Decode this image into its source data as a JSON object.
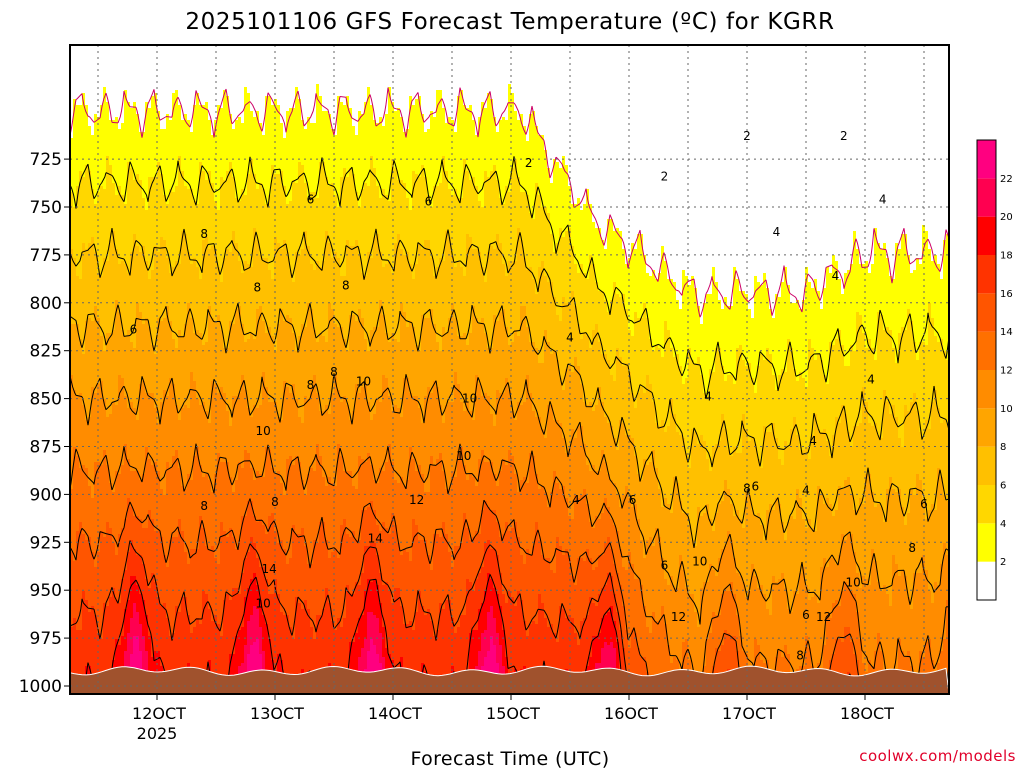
{
  "title": "2025101106 GFS Forecast Temperature (ºC) for KGRR",
  "x_axis_title": "Forecast Time (UTC)",
  "credit": "coolwx.com/models",
  "colors": {
    "background": "#ffffff",
    "ground": "#a0522d",
    "contour_line": "#000000",
    "zero_line": "#cc0066",
    "frame": "#000000",
    "grid": "#666666"
  },
  "chart_data": {
    "type": "heatmap",
    "title": "2025101106 GFS Forecast Temperature (ºC) for KGRR",
    "xlabel": "Forecast Time (UTC)",
    "ylabel": "",
    "x_ticks": [
      "12OCT",
      "13OCT",
      "14OCT",
      "15OCT",
      "16OCT",
      "17OCT",
      "18OCT"
    ],
    "x_tick_sublabels": [
      "2025",
      "",
      "",
      "",
      "",
      "",
      ""
    ],
    "y_ticks": [
      725,
      750,
      775,
      800,
      825,
      850,
      875,
      900,
      925,
      950,
      975,
      1000
    ],
    "y_range_hpa": [
      1000,
      700
    ],
    "y_scale": "linear-inverted",
    "grid": true,
    "colorbar": {
      "labels": [
        "2",
        "4",
        "6",
        "8",
        "10",
        "12",
        "14",
        "16",
        "18",
        "20",
        "22"
      ],
      "bins": [
        {
          "lower": 0,
          "upper": 2,
          "color": "#ffffff"
        },
        {
          "lower": 2,
          "upper": 4,
          "color": "#ffff00"
        },
        {
          "lower": 4,
          "upper": 6,
          "color": "#ffd700"
        },
        {
          "lower": 6,
          "upper": 8,
          "color": "#ffc000"
        },
        {
          "lower": 8,
          "upper": 10,
          "color": "#ffa500"
        },
        {
          "lower": 10,
          "upper": 12,
          "color": "#ff8c00"
        },
        {
          "lower": 12,
          "upper": 14,
          "color": "#ff7000"
        },
        {
          "lower": 14,
          "upper": 16,
          "color": "#ff5500"
        },
        {
          "lower": 16,
          "upper": 18,
          "color": "#ff3300"
        },
        {
          "lower": 18,
          "upper": 20,
          "color": "#ff0000"
        },
        {
          "lower": 20,
          "upper": 22,
          "color": "#ff0050"
        },
        {
          "lower": 22,
          "upper": 24,
          "color": "#ff0080"
        }
      ]
    },
    "contour_interval": 2,
    "contour_labels": [
      "2",
      "4",
      "6",
      "8",
      "10",
      "12",
      "14"
    ]
  }
}
